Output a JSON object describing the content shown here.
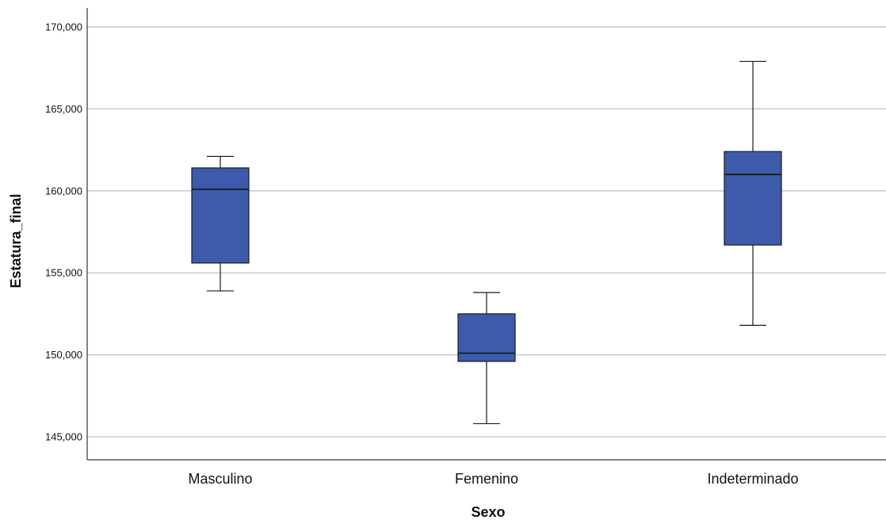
{
  "chart_data": {
    "type": "boxplot",
    "xlabel": "Sexo",
    "ylabel": "Estatura_final",
    "ylim": [
      144000,
      170500
    ],
    "yticks": [
      145000,
      150000,
      155000,
      160000,
      165000,
      170000
    ],
    "ytick_labels": [
      "145,000",
      "150,000",
      "155,000",
      "160,000",
      "165,000",
      "170,000"
    ],
    "grid": true,
    "categories": [
      "Masculino",
      "Femenino",
      "Indeterminado"
    ],
    "boxes": [
      {
        "category": "Masculino",
        "min": 153900,
        "q1": 155600,
        "median": 160100,
        "q3": 161400,
        "max": 162100
      },
      {
        "category": "Femenino",
        "min": 145800,
        "q1": 149600,
        "median": 150100,
        "q3": 152500,
        "max": 153800
      },
      {
        "category": "Indeterminado",
        "min": 151800,
        "q1": 156700,
        "median": 161000,
        "q3": 162400,
        "max": 167900
      }
    ],
    "colors": {
      "box_fill": "#3d5aab",
      "box_stroke": "#1a1a1a",
      "grid": "#c8c8c8",
      "axis": "#333333"
    }
  }
}
